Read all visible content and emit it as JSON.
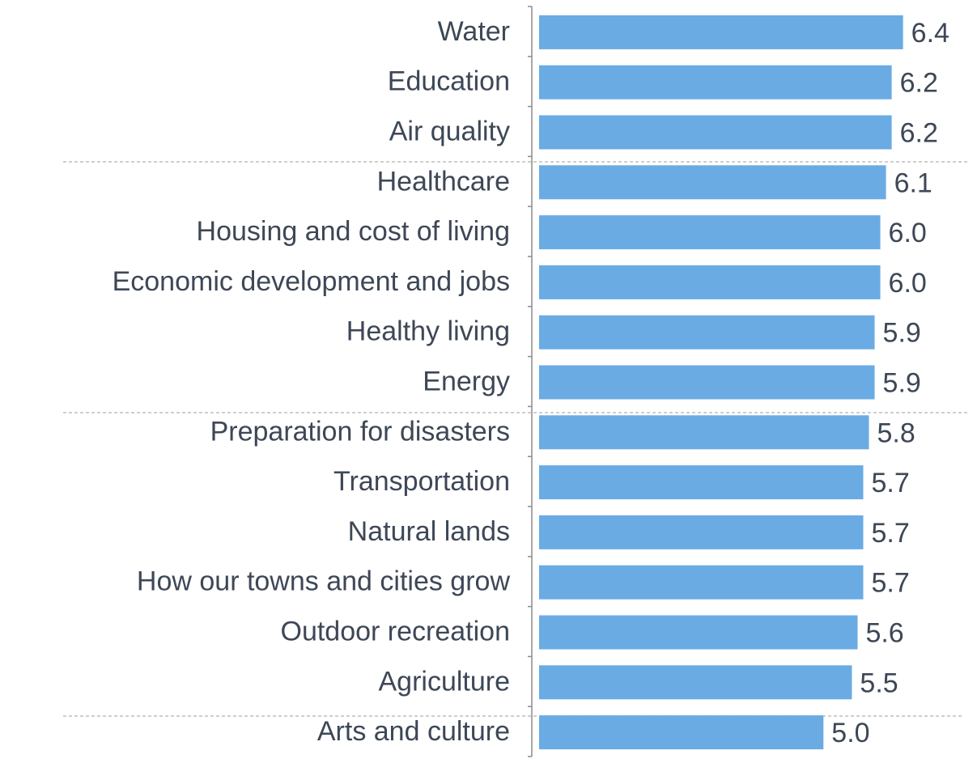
{
  "chart_data": {
    "type": "hbar",
    "categories": [
      "Water",
      "Education",
      "Air quality",
      "Healthcare",
      "Housing and cost of living",
      "Economic development and jobs",
      "Healthy living",
      "Energy",
      "Preparation for disasters",
      "Transportation",
      "Natural lands",
      "How our towns and cities grow",
      "Outdoor recreation",
      "Agriculture",
      "Arts and culture"
    ],
    "values": [
      6.4,
      6.2,
      6.2,
      6.1,
      6.0,
      6.0,
      5.9,
      5.9,
      5.8,
      5.7,
      5.7,
      5.7,
      5.6,
      5.5,
      5.0
    ],
    "value_labels": [
      "6.4",
      "6.2",
      "6.2",
      "6.1",
      "6.0",
      "6.0",
      "5.9",
      "5.9",
      "5.8",
      "5.7",
      "5.7",
      "5.7",
      "5.6",
      "5.5",
      "5.0"
    ],
    "color": "#6aabe4",
    "xlim": [
      0,
      7.7
    ]
  }
}
